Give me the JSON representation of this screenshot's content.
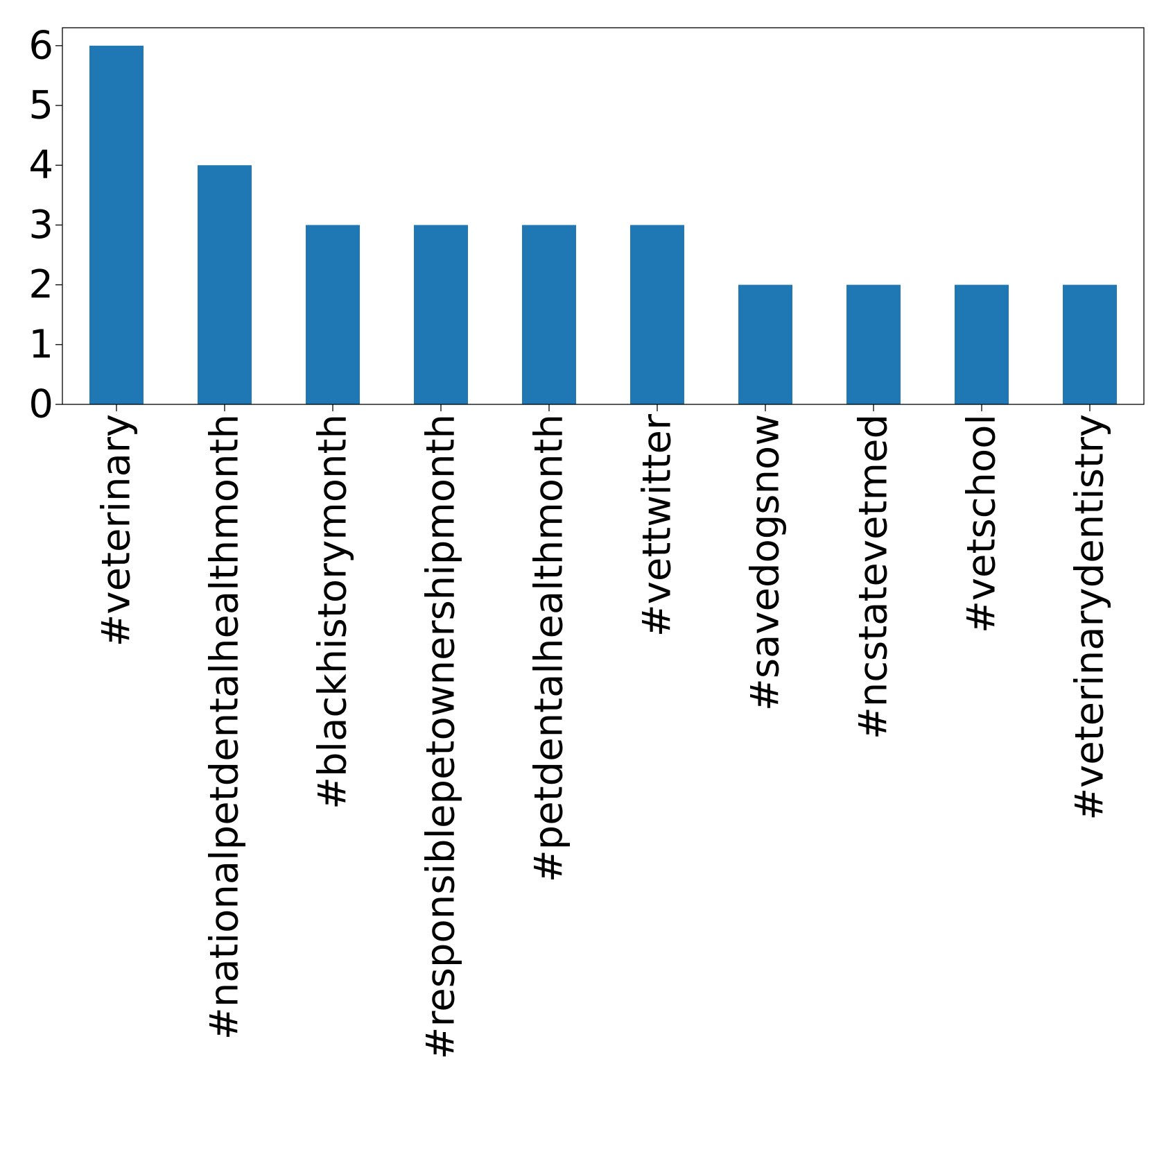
{
  "chart_data": {
    "type": "bar",
    "title": "",
    "xlabel": "",
    "ylabel": "",
    "categories": [
      "#veterinary",
      "#nationalpetdentalhealthmonth",
      "#blackhistorymonth",
      "#responsiblepetownershipmonth",
      "#petdentalhealthmonth",
      "#vettwitter",
      "#savedogsnow",
      "#ncstatevetmed",
      "#vetschool",
      "#veterinarydentistry"
    ],
    "values": [
      6,
      4,
      3,
      3,
      3,
      3,
      2,
      2,
      2,
      2
    ],
    "ylim": [
      0,
      6.3
    ],
    "yticks": [
      0,
      1,
      2,
      3,
      4,
      5,
      6
    ],
    "grid": false,
    "legend": "none",
    "bar_color": "#1f77b4",
    "axis_color": "#000000"
  }
}
